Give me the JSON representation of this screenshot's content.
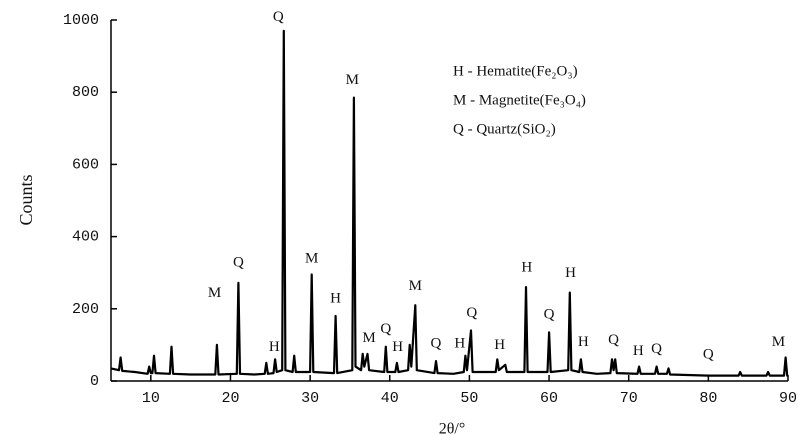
{
  "chart_data": {
    "type": "line",
    "xlabel": "2θ/°",
    "ylabel": "Counts",
    "x": [
      5,
      6.0,
      6.2,
      6.4,
      8,
      9.6,
      9.8,
      10.0,
      10.2,
      10.4,
      10.6,
      12.4,
      12.6,
      12.8,
      15,
      18.1,
      18.3,
      18.5,
      20.8,
      21.0,
      21.2,
      23,
      24.3,
      24.5,
      24.7,
      25.4,
      25.6,
      25.8,
      26.5,
      26.7,
      26.9,
      27.8,
      28.0,
      28.2,
      30.0,
      30.2,
      30.4,
      33.0,
      33.2,
      33.4,
      35.3,
      35.5,
      35.7,
      36.4,
      36.6,
      36.8,
      37.2,
      37.4,
      39.3,
      39.5,
      39.7,
      40.7,
      40.9,
      41.1,
      42.3,
      42.5,
      42.7,
      43.2,
      43.4,
      45.6,
      45.8,
      46.0,
      48,
      49.3,
      49.5,
      49.7,
      50.2,
      50.4,
      53.3,
      53.5,
      53.7,
      54.5,
      54.7,
      56.9,
      57.1,
      57.3,
      59.8,
      60.0,
      60.2,
      62.4,
      62.6,
      62.8,
      63.8,
      64.0,
      64.2,
      66,
      67.7,
      67.9,
      68.1,
      68.3,
      68.5,
      71.1,
      71.3,
      71.5,
      73.3,
      73.5,
      73.7,
      74.8,
      75.0,
      75.2,
      80,
      83.8,
      84.0,
      84.2,
      87.3,
      87.5,
      87.7,
      89.5,
      89.7,
      89.9,
      90
    ],
    "series": [
      {
        "color": "#000000",
        "values": [
          35,
          30,
          65,
          28,
          25,
          20,
          40,
          22,
          22,
          70,
          22,
          20,
          95,
          20,
          18,
          18,
          100,
          18,
          20,
          272,
          20,
          18,
          20,
          50,
          20,
          22,
          60,
          25,
          30,
          970,
          30,
          25,
          70,
          25,
          25,
          295,
          25,
          22,
          180,
          22,
          30,
          785,
          40,
          30,
          75,
          40,
          75,
          30,
          25,
          95,
          25,
          25,
          50,
          25,
          30,
          100,
          40,
          210,
          30,
          22,
          55,
          22,
          20,
          25,
          70,
          30,
          140,
          25,
          25,
          60,
          30,
          45,
          25,
          25,
          260,
          25,
          25,
          135,
          25,
          30,
          245,
          30,
          25,
          60,
          25,
          20,
          22,
          60,
          30,
          60,
          22,
          20,
          40,
          20,
          20,
          40,
          20,
          20,
          35,
          18,
          15,
          15,
          25,
          15,
          15,
          25,
          15,
          15,
          65,
          15,
          15
        ]
      }
    ],
    "xlim": [
      5,
      90
    ],
    "xticks": [
      10,
      20,
      30,
      40,
      50,
      60,
      70,
      80,
      90
    ],
    "ylim": [
      0,
      1000
    ],
    "yticks": [
      0,
      200,
      400,
      600,
      800,
      1000
    ],
    "annotations": [
      {
        "text": "Q",
        "x": 26.0,
        "y": 985
      },
      {
        "text": "M",
        "x": 35.3,
        "y": 810
      },
      {
        "text": "Q",
        "x": 21.0,
        "y": 305
      },
      {
        "text": "M",
        "x": 18.0,
        "y": 220
      },
      {
        "text": "M",
        "x": 30.2,
        "y": 315
      },
      {
        "text": "H",
        "x": 33.2,
        "y": 205
      },
      {
        "text": "M",
        "x": 37.4,
        "y": 95
      },
      {
        "text": "Q",
        "x": 39.5,
        "y": 120
      },
      {
        "text": "H",
        "x": 41.0,
        "y": 70
      },
      {
        "text": "M",
        "x": 43.2,
        "y": 240
      },
      {
        "text": "Q",
        "x": 45.8,
        "y": 80
      },
      {
        "text": "H",
        "x": 48.8,
        "y": 80
      },
      {
        "text": "Q",
        "x": 50.3,
        "y": 165
      },
      {
        "text": "H",
        "x": 53.8,
        "y": 76
      },
      {
        "text": "H",
        "x": 57.2,
        "y": 290
      },
      {
        "text": "Q",
        "x": 60.0,
        "y": 160
      },
      {
        "text": "H",
        "x": 62.7,
        "y": 275
      },
      {
        "text": "H",
        "x": 64.3,
        "y": 85
      },
      {
        "text": "Q",
        "x": 68.1,
        "y": 90
      },
      {
        "text": "H",
        "x": 71.2,
        "y": 60
      },
      {
        "text": "Q",
        "x": 73.5,
        "y": 65
      },
      {
        "text": "Q",
        "x": 80.0,
        "y": 50
      },
      {
        "text": "M",
        "x": 88.8,
        "y": 85
      },
      {
        "text": "H",
        "x": 25.5,
        "y": 70
      }
    ],
    "legend": [
      "H - Hematite(Fe₂O₃)",
      "M - Magnetite(Fe₃O₄)",
      "Q - Quartz(SiO₂)"
    ]
  }
}
